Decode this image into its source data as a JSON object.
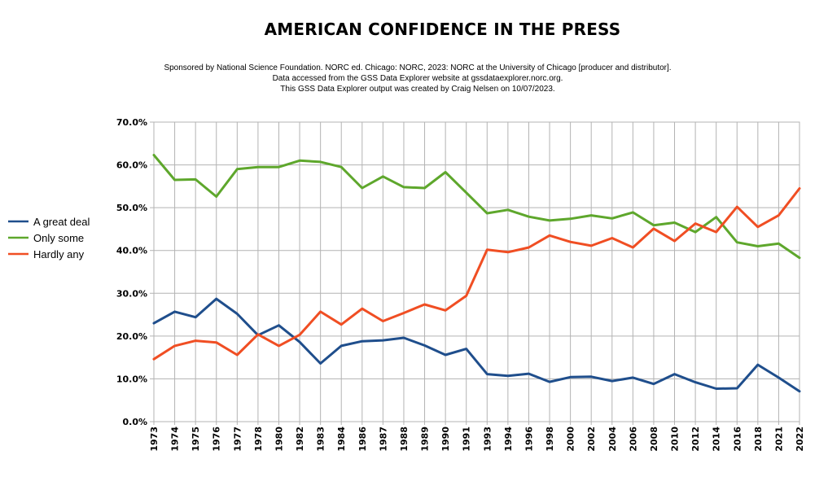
{
  "chart_data": {
    "type": "line",
    "title": "AMERICAN CONFIDENCE IN THE PRESS",
    "subtitle": [
      "Sponsored by National Science Foundation. NORC ed. Chicago: NORC, 2023: NORC at the University of Chicago [producer and distributor].",
      "Data accessed from the GSS Data Explorer website at gssdataexplorer.norc.org.",
      "This GSS Data Explorer output was created by Craig Nelsen on 10/07/2023."
    ],
    "xlabel": "",
    "ylabel": "",
    "ylim": [
      0,
      70
    ],
    "yticks": [
      0,
      10,
      20,
      30,
      40,
      50,
      60,
      70
    ],
    "ytick_labels": [
      "0.0%",
      "10.0%",
      "20.0%",
      "30.0%",
      "40.0%",
      "50.0%",
      "60.0%",
      "70.0%"
    ],
    "grid": true,
    "legend_position": "left",
    "categories": [
      "1973",
      "1974",
      "1975",
      "1976",
      "1977",
      "1978",
      "1980",
      "1982",
      "1983",
      "1984",
      "1986",
      "1987",
      "1988",
      "1989",
      "1990",
      "1991",
      "1993",
      "1994",
      "1996",
      "1998",
      "2000",
      "2002",
      "2004",
      "2006",
      "2008",
      "2010",
      "2012",
      "2014",
      "2016",
      "2018",
      "2021",
      "2022"
    ],
    "series": [
      {
        "name": "A great deal",
        "color": "#1f4e8c",
        "values": [
          23.0,
          25.7,
          24.4,
          28.7,
          25.2,
          20.2,
          22.5,
          18.6,
          13.6,
          17.7,
          18.8,
          19.0,
          19.6,
          17.8,
          15.6,
          17.0,
          11.1,
          10.7,
          11.2,
          9.3,
          10.4,
          10.5,
          9.5,
          10.3,
          8.8,
          11.1,
          9.2,
          7.7,
          7.8,
          13.3,
          10.3,
          7.1
        ]
      },
      {
        "name": "Only some",
        "color": "#5ea72c",
        "values": [
          62.3,
          56.5,
          56.6,
          52.6,
          59.0,
          59.5,
          59.5,
          61.0,
          60.7,
          59.5,
          54.6,
          57.3,
          54.8,
          54.6,
          58.3,
          53.5,
          48.7,
          49.5,
          47.9,
          47.0,
          47.4,
          48.2,
          47.5,
          48.9,
          45.9,
          46.5,
          44.3,
          47.8,
          41.9,
          41.0,
          41.6,
          38.3
        ]
      },
      {
        "name": "Hardly any",
        "color": "#f04e23",
        "values": [
          14.6,
          17.7,
          18.9,
          18.5,
          15.6,
          20.4,
          17.7,
          20.3,
          25.7,
          22.7,
          26.4,
          23.5,
          25.4,
          27.4,
          26.0,
          29.4,
          40.2,
          39.6,
          40.7,
          43.5,
          42.0,
          41.1,
          42.9,
          40.7,
          45.1,
          42.2,
          46.3,
          44.3,
          50.2,
          45.5,
          48.2,
          54.5
        ]
      }
    ]
  }
}
